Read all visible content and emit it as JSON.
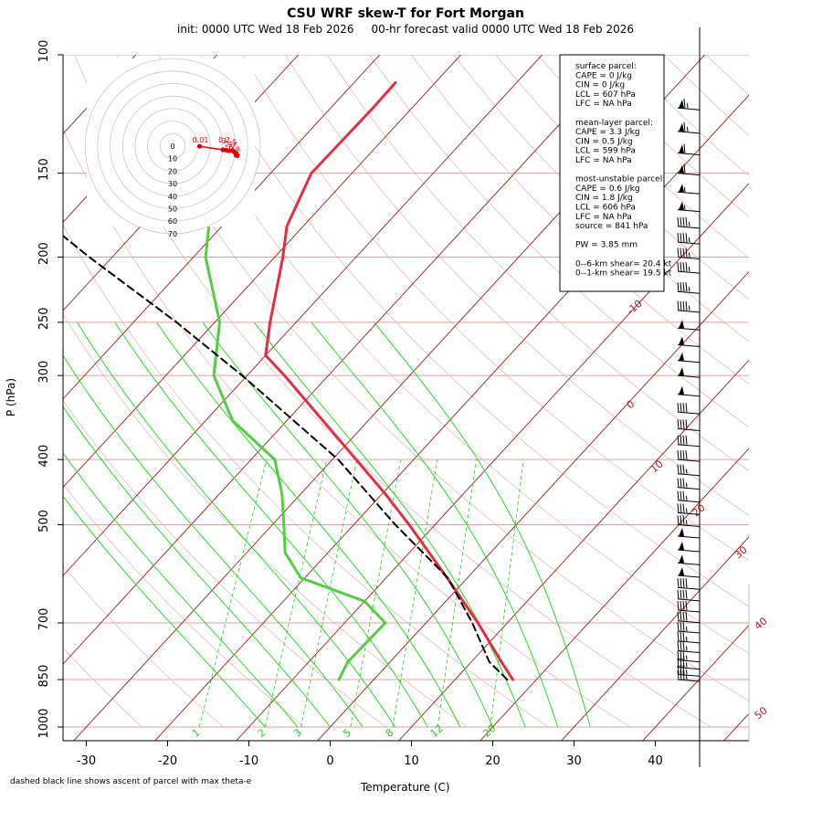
{
  "header": {
    "title": "CSU WRF skew-T for Fort Morgan",
    "subtitle": "init: 0000 UTC Wed 18 Feb 2026     00-hr forecast valid 0000 UTC Wed 18 Feb 2026"
  },
  "footnote": "dashed black line shows ascent of parcel with max theta-e",
  "colors": {
    "temperature": "#e03040",
    "dewpoint": "#55cc44",
    "parcel": "#000000",
    "isotherm": "#a01818",
    "isobar": "#e0a0a0",
    "dry_adiabat": "#e8b0b0",
    "moist_adiabat": "#22dd22",
    "mixing_ratio": "#22cc22",
    "hodograph": "#e00000"
  },
  "info_box": [
    "surface parcel:",
    "CAPE = 0 J/kg",
    "CIN = 0 J/kg",
    "LCL = 607 hPa",
    "LFC = NA hPa",
    "",
    "mean-layer parcel:",
    "CAPE = 3.3 J/kg",
    "CIN = 0.5 J/kg",
    "LCL = 599 hPa",
    "LFC = NA hPa",
    "",
    "most-unstable parcel:",
    "CAPE = 0.6 J/kg",
    "CIN = 1.8 J/kg",
    "LCL = 606 hPa",
    "LFC = NA hPa",
    "source = 841 hPa",
    "",
    "PW =  3.85 mm",
    "",
    "0--6-km shear= 20.4 kt",
    "0--1-km shear= 19.5 kt"
  ],
  "chart_data": {
    "type": "line",
    "title": "CSU WRF skew-T for Fort Morgan",
    "xlabel": "Temperature (C)",
    "ylabel": "P (hPa)",
    "xlim": [
      -33,
      46
    ],
    "ylim": [
      1000,
      100
    ],
    "y_scale": "log",
    "x_ticks": [
      -30,
      -20,
      -10,
      0,
      10,
      20,
      30,
      40
    ],
    "y_ticks": [
      100,
      150,
      200,
      250,
      300,
      400,
      500,
      700,
      850,
      1000
    ],
    "isotherm_labels": [
      -10,
      0,
      10,
      20,
      30,
      40,
      50
    ],
    "mixing_ratio_labels": [
      1,
      2,
      3,
      5,
      8,
      12,
      20
    ],
    "series": [
      {
        "key": "temperature",
        "p": [
          850,
          800,
          700,
          600,
          500,
          450,
          400,
          350,
          300,
          280,
          250,
          200,
          180,
          150,
          120,
          110
        ],
        "t": [
          17.1,
          13.7,
          6.4,
          -2.5,
          -13.2,
          -19.6,
          -27.1,
          -35.6,
          -45.4,
          -50.0,
          -53.2,
          -59.0,
          -62.0,
          -65.0,
          -64.8,
          -64.9
        ]
      },
      {
        "key": "dewpoint",
        "p": [
          850,
          800,
          740,
          700,
          650,
          600,
          550,
          500,
          450,
          400,
          350,
          300,
          250,
          200,
          175
        ],
        "t": [
          -4.3,
          -5.2,
          -5.1,
          -5.0,
          -10.0,
          -20.5,
          -25.3,
          -28.6,
          -32.3,
          -37.1,
          -46.7,
          -54.1,
          -59.4,
          -68.5,
          -72.4
        ]
      },
      {
        "key": "parcel",
        "p": [
          850,
          800,
          700,
          650,
          600,
          500,
          400,
          300,
          250,
          200,
          150,
          120
        ],
        "t": [
          16.4,
          12.2,
          5.7,
          1.8,
          -2.4,
          -14.9,
          -29.3,
          -50.6,
          -64.7,
          -82.8,
          -105.1,
          -121.5
        ]
      }
    ],
    "hodograph": {
      "rings": [
        0,
        10,
        20,
        30,
        40,
        50,
        60,
        70
      ],
      "points": [
        {
          "label": "0.01",
          "u": 0.2,
          "v": -0.1
        },
        {
          "label": "0.2",
          "u": 8.7,
          "v": -1.0
        },
        {
          "label": "2",
          "u": 10.0,
          "v": -1.2
        },
        {
          "label": "3",
          "u": 11.0,
          "v": -1.6
        },
        {
          "label": "4",
          "u": 12.2,
          "v": -1.3
        },
        {
          "label": "5",
          "u": 12.8,
          "v": -2.2
        },
        {
          "label": "6",
          "u": 13.5,
          "v": -3.0
        },
        {
          "label": "7",
          "u": 13.5,
          "v": -4.0
        },
        {
          "label": "8",
          "u": 14.0,
          "v": -4.2
        }
      ]
    },
    "wind_barbs": [
      {
        "p": 120,
        "spd": 65,
        "dir": 260
      },
      {
        "p": 130,
        "spd": 65,
        "dir": 260
      },
      {
        "p": 140,
        "spd": 60,
        "dir": 260
      },
      {
        "p": 150,
        "spd": 60,
        "dir": 262
      },
      {
        "p": 160,
        "spd": 55,
        "dir": 262
      },
      {
        "p": 170,
        "spd": 55,
        "dir": 262
      },
      {
        "p": 180,
        "spd": 45,
        "dir": 265
      },
      {
        "p": 190,
        "spd": 45,
        "dir": 265
      },
      {
        "p": 200,
        "spd": 45,
        "dir": 265
      },
      {
        "p": 210,
        "spd": 45,
        "dir": 265
      },
      {
        "p": 225,
        "spd": 45,
        "dir": 265
      },
      {
        "p": 240,
        "spd": 45,
        "dir": 265
      },
      {
        "p": 255,
        "spd": 50,
        "dir": 265
      },
      {
        "p": 270,
        "spd": 50,
        "dir": 265
      },
      {
        "p": 285,
        "spd": 50,
        "dir": 268
      },
      {
        "p": 300,
        "spd": 50,
        "dir": 268
      },
      {
        "p": 320,
        "spd": 50,
        "dir": 268
      },
      {
        "p": 340,
        "spd": 40,
        "dir": 268
      },
      {
        "p": 360,
        "spd": 40,
        "dir": 270
      },
      {
        "p": 380,
        "spd": 40,
        "dir": 270
      },
      {
        "p": 400,
        "spd": 40,
        "dir": 270
      },
      {
        "p": 420,
        "spd": 35,
        "dir": 270
      },
      {
        "p": 440,
        "spd": 35,
        "dir": 270
      },
      {
        "p": 460,
        "spd": 35,
        "dir": 270
      },
      {
        "p": 480,
        "spd": 35,
        "dir": 270
      },
      {
        "p": 500,
        "spd": 35,
        "dir": 272
      },
      {
        "p": 520,
        "spd": 50,
        "dir": 272
      },
      {
        "p": 545,
        "spd": 50,
        "dir": 272
      },
      {
        "p": 570,
        "spd": 50,
        "dir": 272
      },
      {
        "p": 595,
        "spd": 50,
        "dir": 275
      },
      {
        "p": 620,
        "spd": 40,
        "dir": 275
      },
      {
        "p": 645,
        "spd": 40,
        "dir": 275
      },
      {
        "p": 670,
        "spd": 40,
        "dir": 275
      },
      {
        "p": 695,
        "spd": 40,
        "dir": 275
      },
      {
        "p": 720,
        "spd": 35,
        "dir": 275
      },
      {
        "p": 745,
        "spd": 35,
        "dir": 275
      },
      {
        "p": 770,
        "spd": 35,
        "dir": 275
      },
      {
        "p": 795,
        "spd": 35,
        "dir": 275
      },
      {
        "p": 815,
        "spd": 35,
        "dir": 275
      },
      {
        "p": 835,
        "spd": 35,
        "dir": 275
      },
      {
        "p": 850,
        "spd": 35,
        "dir": 275
      }
    ]
  }
}
